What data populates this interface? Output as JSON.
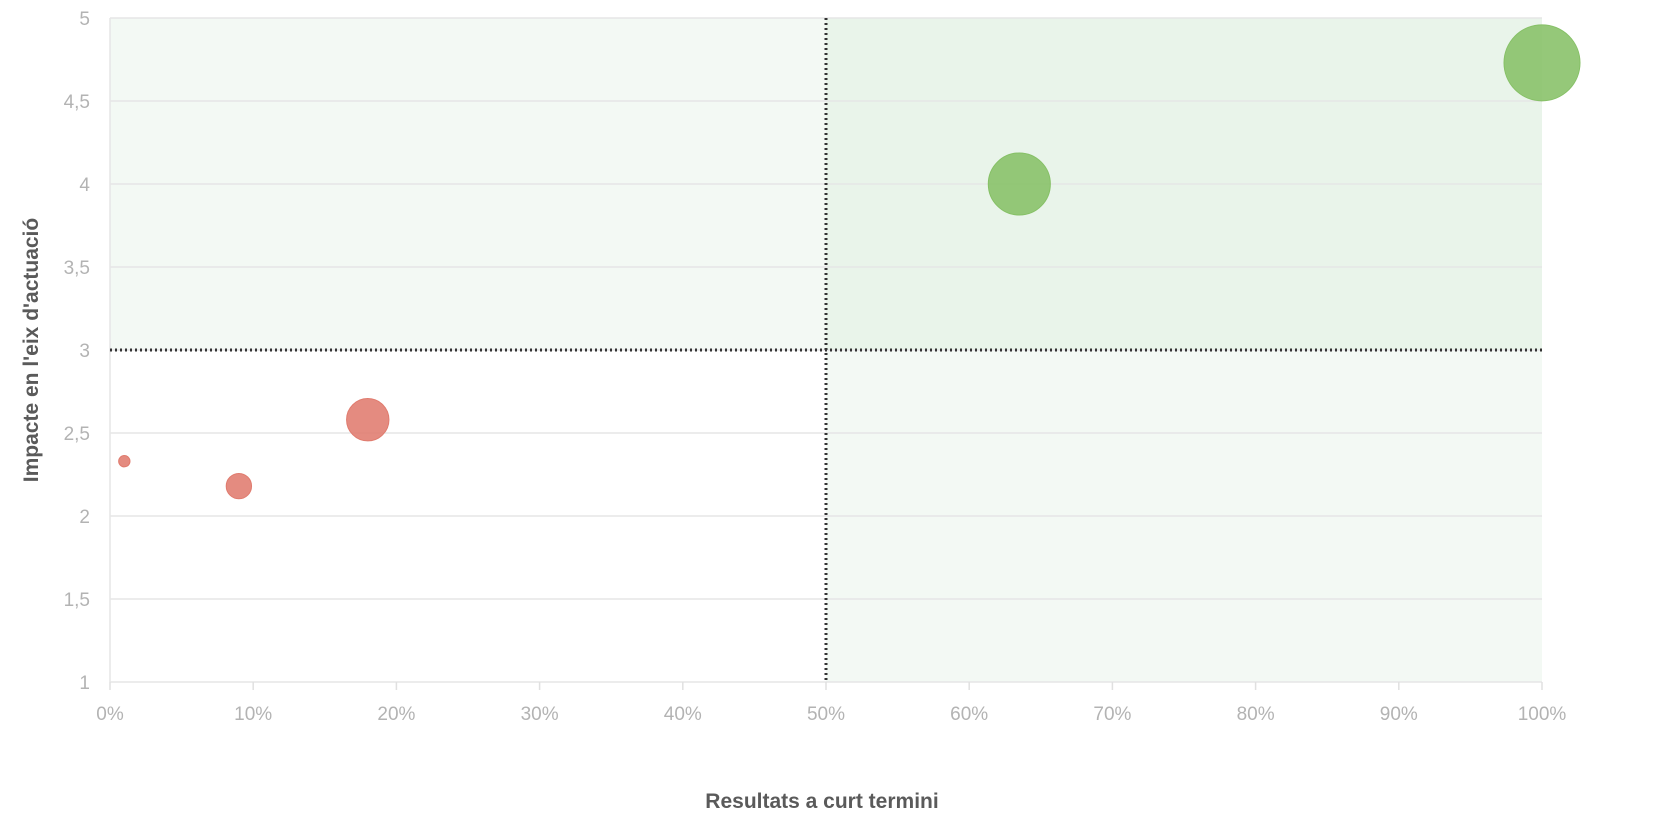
{
  "chart_data": {
    "type": "scatter",
    "title": "",
    "xlabel": "Resultats a curt termini",
    "ylabel": "Impacte en l'eix d'actuació",
    "xlim": [
      0,
      100
    ],
    "ylim": [
      1,
      5
    ],
    "x_ticks": [
      0,
      10,
      20,
      30,
      40,
      50,
      60,
      70,
      80,
      90,
      100
    ],
    "x_tick_labels": [
      "0%",
      "10%",
      "20%",
      "30%",
      "40%",
      "50%",
      "60%",
      "70%",
      "80%",
      "90%",
      "100%"
    ],
    "y_ticks": [
      1,
      1.5,
      2,
      2.5,
      3,
      3.5,
      4,
      4.5,
      5
    ],
    "y_tick_labels": [
      "1",
      "1,5",
      "2",
      "2,5",
      "3",
      "3,5",
      "4",
      "4,5",
      "5"
    ],
    "grid": true,
    "reference_lines": {
      "x": 50,
      "y": 3
    },
    "quadrants": [
      {
        "x_range": [
          0,
          50
        ],
        "y_range": [
          3,
          5
        ],
        "color": "#f3f9f4"
      },
      {
        "x_range": [
          50,
          100
        ],
        "y_range": [
          3,
          5
        ],
        "color": "#e9f4ea"
      },
      {
        "x_range": [
          50,
          100
        ],
        "y_range": [
          1,
          3
        ],
        "color": "#f3f9f4"
      }
    ],
    "points": [
      {
        "x": 1,
        "y": 2.33,
        "size": 1,
        "color": "#e07b6e"
      },
      {
        "x": 9,
        "y": 2.18,
        "size": 5,
        "color": "#e07b6e"
      },
      {
        "x": 18,
        "y": 2.58,
        "size": 14,
        "color": "#e07b6e"
      },
      {
        "x": 63.5,
        "y": 4,
        "size": 30,
        "color": "#86c066"
      },
      {
        "x": 100,
        "y": 4.73,
        "size": 45,
        "color": "#86c066"
      }
    ]
  }
}
